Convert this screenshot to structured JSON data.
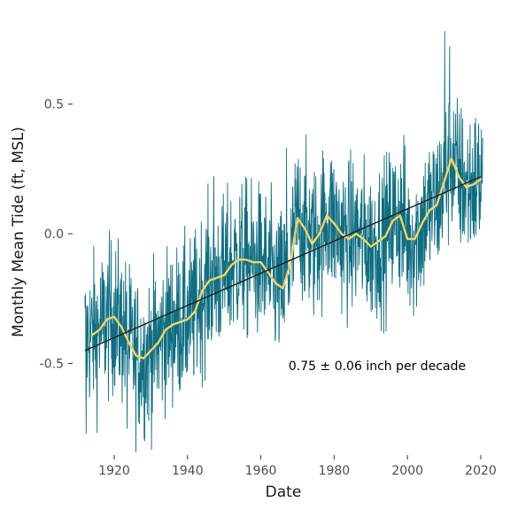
{
  "chart_data": {
    "type": "line",
    "xlabel": "Date",
    "ylabel": "Monthly Mean Tide (ft, MSL)",
    "annotation": "0.75 ± 0.06 inch per decade",
    "xlim": [
      1910,
      2022
    ],
    "ylim": [
      -0.8,
      0.8
    ],
    "x_ticks": [
      1920,
      1940,
      1960,
      1980,
      2000,
      2020
    ],
    "x_tick_labels": [
      "1920",
      "1940",
      "1960",
      "1980",
      "2000",
      "2020"
    ],
    "y_ticks": [
      -0.5,
      0.0,
      0.5
    ],
    "y_tick_labels": [
      "-0.5",
      "0.0",
      "0.5"
    ],
    "grid": false,
    "colors": {
      "monthly": "#0f6e82",
      "smoothed": "#f2d462",
      "trend": "#222222"
    },
    "series": [
      {
        "kind": "monthly",
        "x_start": 1912.0,
        "x_end": 2020.5,
        "amplitude": 0.15,
        "extremes": [
          {
            "x": 1912.3,
            "y": -0.77
          },
          {
            "x": 1923.5,
            "y": -0.75
          },
          {
            "x": 1947.2,
            "y": 0.22
          },
          {
            "x": 1967.0,
            "y": 0.33
          },
          {
            "x": 1999.0,
            "y": 0.38
          },
          {
            "x": 2010.2,
            "y": 0.78
          },
          {
            "x": 2011.5,
            "y": 0.72
          }
        ]
      },
      {
        "kind": "smoothed",
        "x": [
          1914,
          1916,
          1918,
          1920,
          1922,
          1924,
          1926,
          1928,
          1930,
          1932,
          1934,
          1936,
          1938,
          1940,
          1942,
          1944,
          1946,
          1948,
          1950,
          1952,
          1954,
          1956,
          1958,
          1960,
          1962,
          1964,
          1966,
          1968,
          1970,
          1972,
          1974,
          1976,
          1978,
          1980,
          1982,
          1984,
          1986,
          1988,
          1990,
          1992,
          1994,
          1996,
          1998,
          2000,
          2002,
          2004,
          2006,
          2008,
          2010,
          2012,
          2014,
          2016,
          2018,
          2020
        ],
        "y": [
          -0.39,
          -0.37,
          -0.33,
          -0.32,
          -0.36,
          -0.42,
          -0.47,
          -0.48,
          -0.45,
          -0.42,
          -0.37,
          -0.35,
          -0.34,
          -0.33,
          -0.3,
          -0.22,
          -0.18,
          -0.17,
          -0.16,
          -0.12,
          -0.1,
          -0.1,
          -0.11,
          -0.11,
          -0.15,
          -0.19,
          -0.21,
          -0.12,
          0.06,
          0.02,
          -0.04,
          0.0,
          0.07,
          0.04,
          0.0,
          -0.02,
          0.0,
          -0.02,
          -0.05,
          -0.03,
          -0.01,
          0.05,
          0.07,
          -0.02,
          -0.02,
          0.04,
          0.09,
          0.11,
          0.2,
          0.29,
          0.22,
          0.18,
          0.19,
          0.21
        ]
      },
      {
        "kind": "trend",
        "x": [
          1912,
          2020
        ],
        "y": [
          -0.45,
          0.22
        ]
      }
    ]
  }
}
